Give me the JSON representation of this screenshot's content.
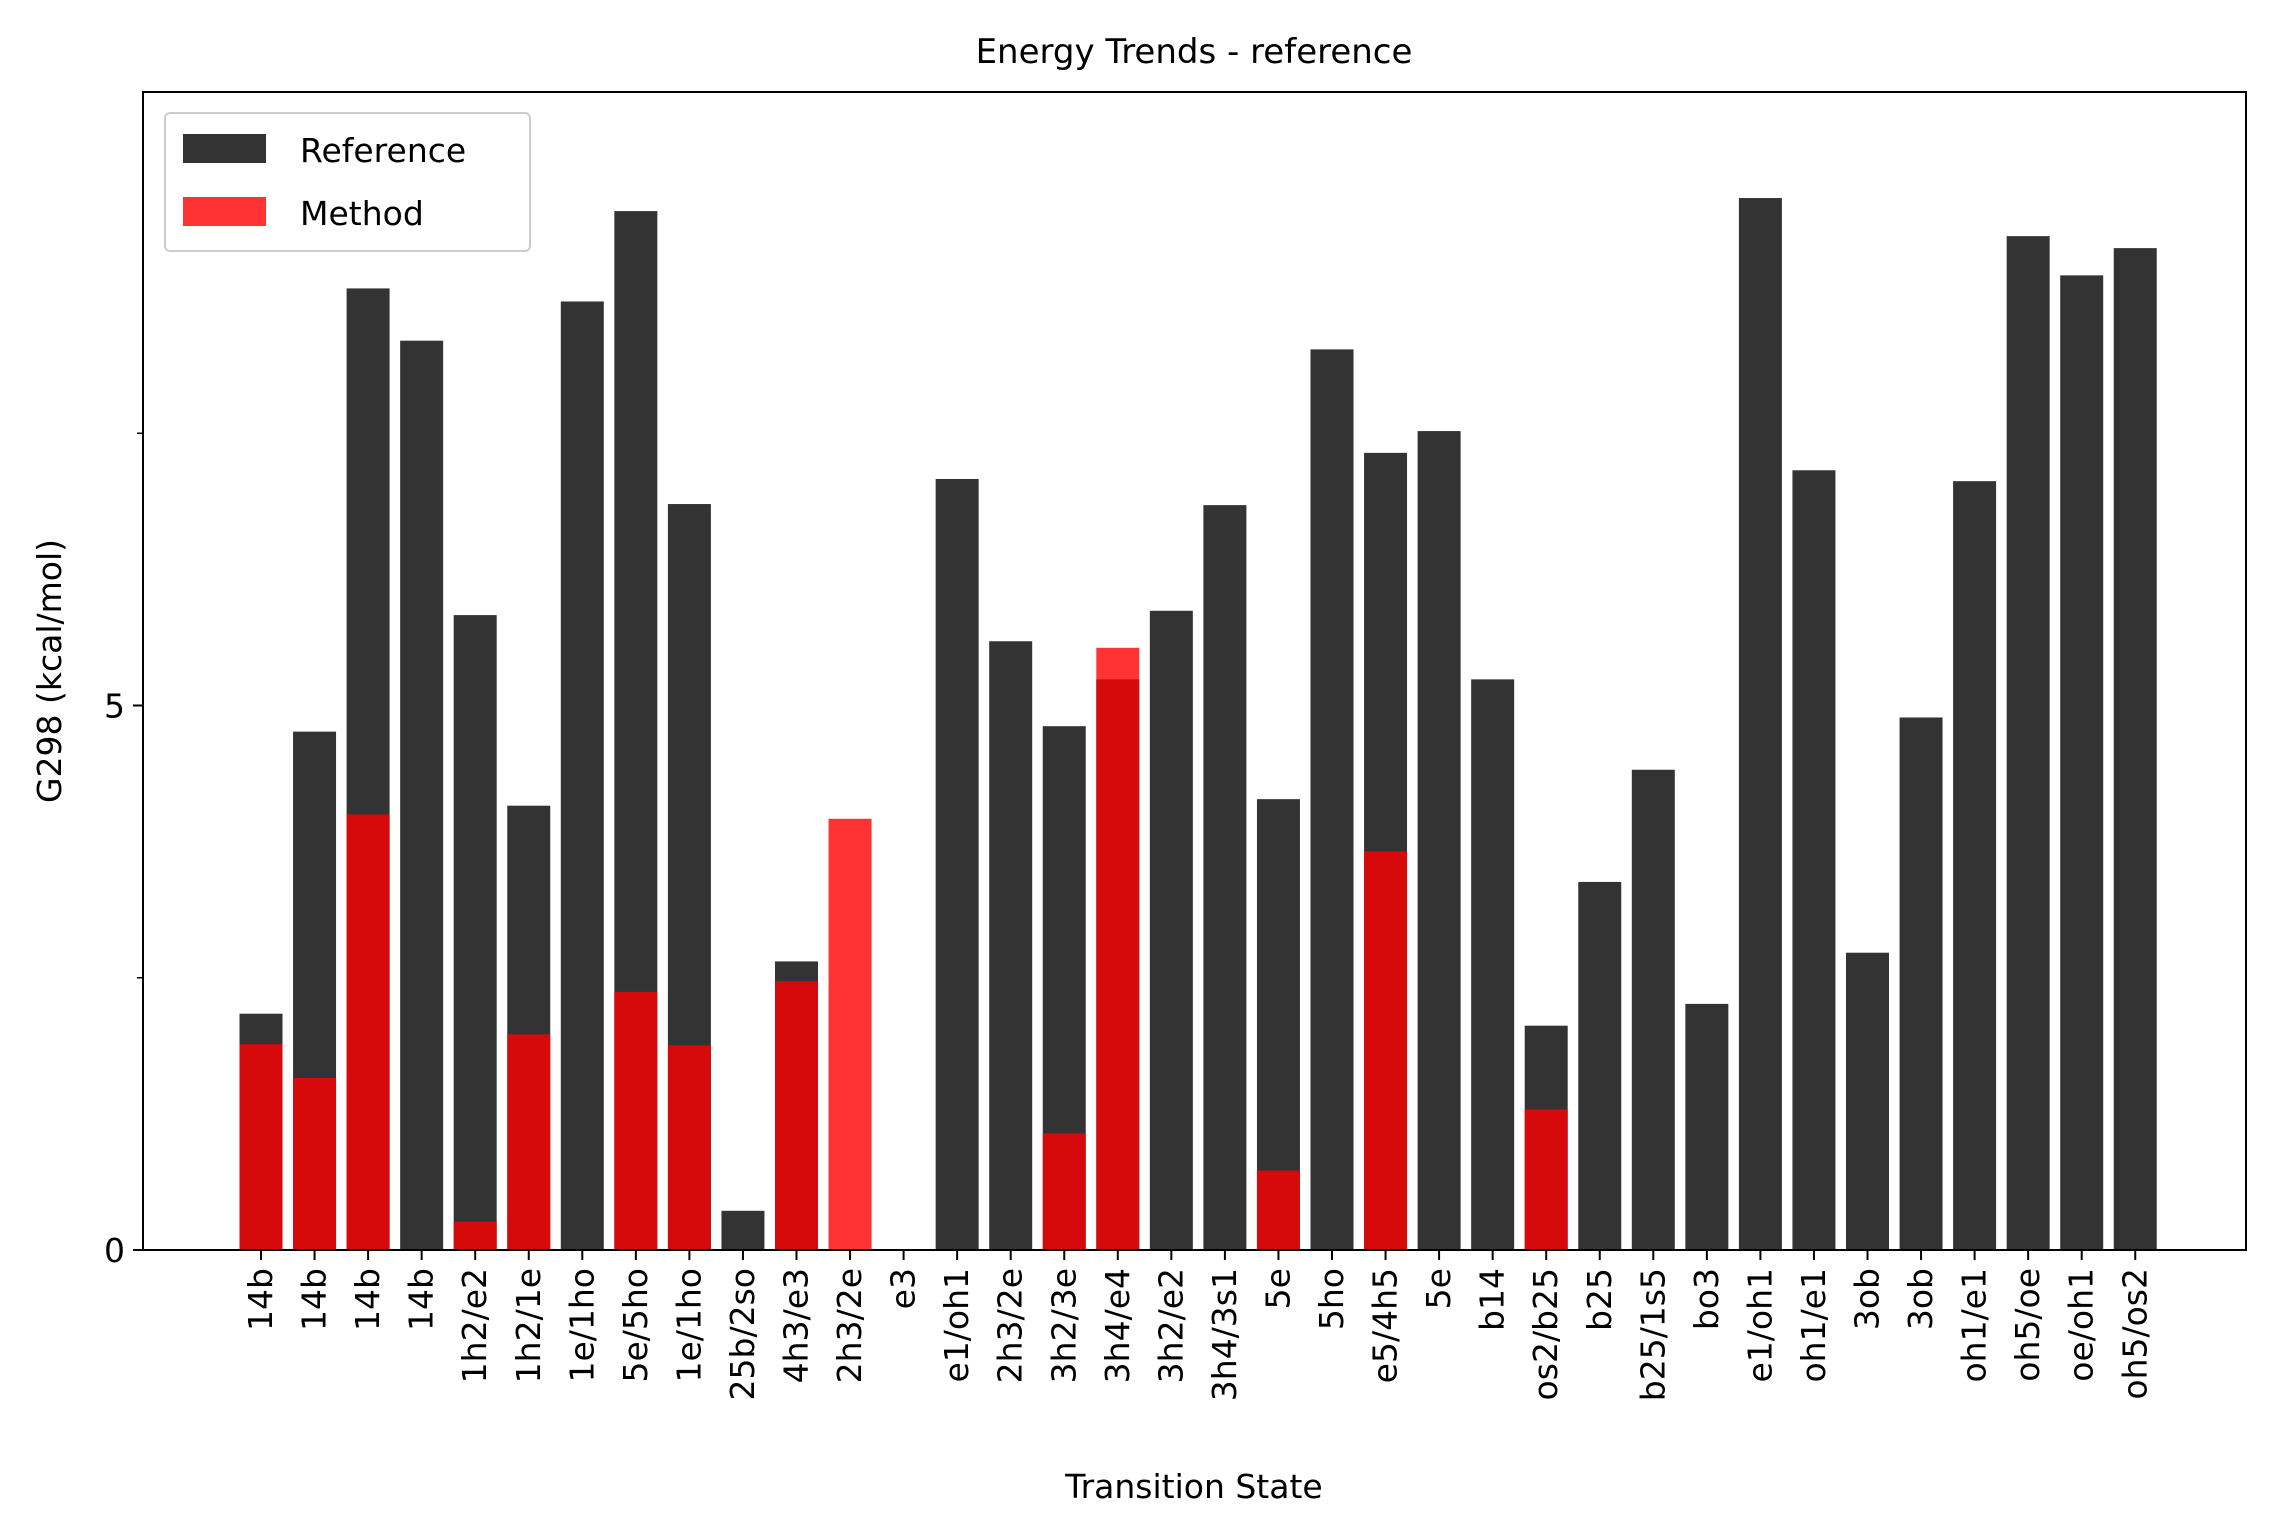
{
  "chart_data": {
    "type": "bar",
    "title": "Energy Trends - reference",
    "xlabel": "Transition State",
    "ylabel": "G298 (kcal/mol)",
    "ylim": [
      0,
      10.6
    ],
    "yticks": [
      0,
      5
    ],
    "yticks_minor": [
      2.5,
      7.5
    ],
    "grid": false,
    "legend_position": "top-left",
    "categories": [
      "14b",
      "14b",
      "14b",
      "14b",
      "1h2/e2",
      "1h2/1e",
      "1e/1ho",
      "5e/5ho",
      "1e/1ho",
      "25b/2so",
      "4h3/e3",
      "2h3/2e",
      "e3",
      "e1/oh1",
      "2h3/2e",
      "3h2/3e",
      "3h4/e4",
      "3h2/e2",
      "3h4/3s1",
      "5e",
      "5ho",
      "e5/4h5",
      "5e",
      "b14",
      "os2/b25",
      "b25",
      "b25/1s5",
      "bo3",
      "e1/oh1",
      "oh1/e1",
      "3ob",
      "3ob",
      "oh1/e1",
      "oh5/oe",
      "oe/oh1",
      "oh5/os2"
    ],
    "series": [
      {
        "name": "Reference",
        "color": "#000000",
        "opacity": 0.8,
        "values": [
          2.17,
          4.76,
          8.83,
          8.35,
          5.83,
          4.08,
          8.71,
          9.54,
          6.85,
          0.36,
          2.65,
          0,
          0,
          7.08,
          5.59,
          4.81,
          5.24,
          5.87,
          6.84,
          4.14,
          8.27,
          7.32,
          7.52,
          5.24,
          2.06,
          3.38,
          4.41,
          2.26,
          9.66,
          7.16,
          2.73,
          4.89,
          7.06,
          9.31,
          8.95,
          9.2
        ]
      },
      {
        "name": "Method",
        "color": "#ff0000",
        "opacity": 0.8,
        "values": [
          1.89,
          1.58,
          4.0,
          0,
          0.26,
          1.98,
          0,
          2.37,
          1.88,
          0,
          2.47,
          3.96,
          0,
          0,
          0,
          1.07,
          5.53,
          0,
          0,
          0.73,
          0,
          3.66,
          0,
          0,
          1.29,
          0,
          0,
          0,
          0,
          0,
          0,
          0,
          0,
          0,
          0,
          0
        ]
      }
    ]
  }
}
